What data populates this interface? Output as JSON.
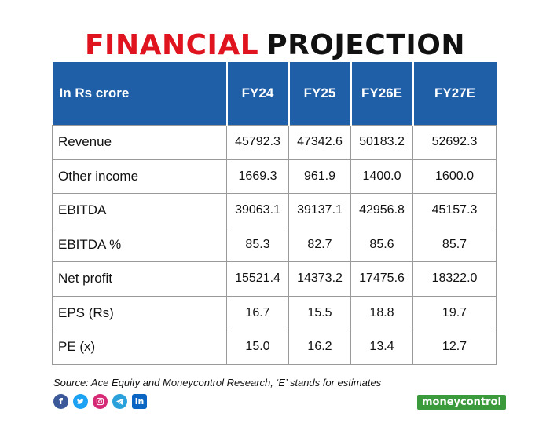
{
  "title": {
    "part1": "FINANCIAL",
    "part2": "PROJECTION"
  },
  "table": {
    "header": [
      "In Rs crore",
      "FY24",
      "FY25",
      "FY26E",
      "FY27E"
    ],
    "rows": [
      [
        "Revenue",
        "45792.3",
        "47342.6",
        "50183.2",
        "52692.3"
      ],
      [
        "Other income",
        "1669.3",
        "961.9",
        "1400.0",
        "1600.0"
      ],
      [
        "EBITDA",
        "39063.1",
        "39137.1",
        "42956.8",
        "45157.3"
      ],
      [
        "EBITDA %",
        "85.3",
        "82.7",
        "85.6",
        "85.7"
      ],
      [
        "Net profit",
        "15521.4",
        "14373.2",
        "17475.6",
        "18322.0"
      ],
      [
        "EPS (Rs)",
        "16.7",
        "15.5",
        "18.8",
        "19.7"
      ],
      [
        "PE (x)",
        "15.0",
        "16.2",
        "13.4",
        "12.7"
      ]
    ]
  },
  "source": "Source: Ace Equity and Moneycontrol Research, ‘E’ stands for estimates",
  "social_icons": [
    "facebook-icon",
    "twitter-icon",
    "instagram-icon",
    "telegram-icon",
    "linkedin-icon"
  ],
  "brand": "moneycontrol",
  "colors": {
    "accent_red": "#e0141e",
    "header_blue": "#1f5fa8",
    "brand_green": "#3b9a3c"
  }
}
